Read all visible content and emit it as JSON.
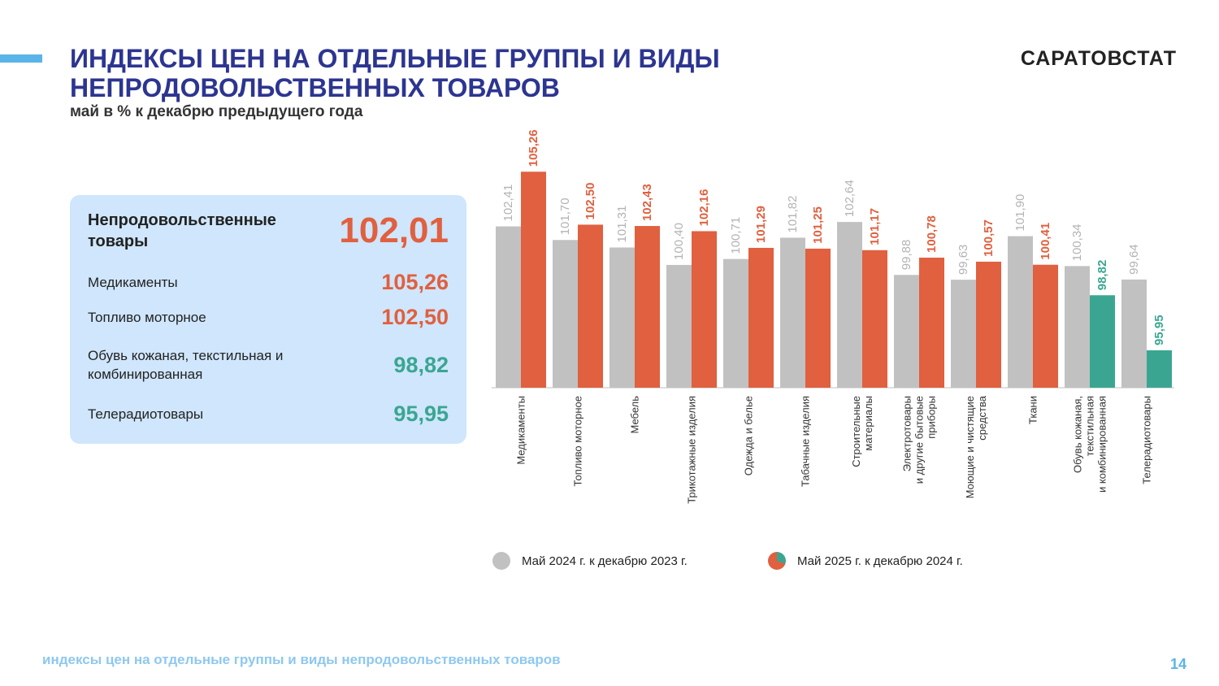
{
  "header": {
    "title_line1": "ИНДЕКСЫ ЦЕН НА ОТДЕЛЬНЫЕ ГРУППЫ И ВИДЫ",
    "title_line2": "НЕПРОДОВОЛЬСТВЕННЫХ ТОВАРОВ",
    "subtitle": "май в % к декабрю предыдущего года",
    "brand": "САРАТОВСТАТ"
  },
  "summary": {
    "items": [
      {
        "label": "Непродовольственные товары",
        "value": "102,01"
      },
      {
        "label": "Медикаменты",
        "value": "105,26"
      },
      {
        "label": "Топливо моторное",
        "value": "102,50"
      },
      {
        "label": "Обувь кожаная, текстильная и комбинированная",
        "value": "98,82"
      },
      {
        "label": "Телерадиотовары",
        "value": "95,95"
      }
    ]
  },
  "colors": {
    "prev": "#c1c1c1",
    "cur_up": "#e0603f",
    "cur_down": "#3aa691",
    "title": "#2c3590",
    "panel": "#cfe6fc"
  },
  "chart_data": {
    "type": "bar",
    "categories": [
      [
        "Медикаменты"
      ],
      [
        "Топливо моторное"
      ],
      [
        "Мебель"
      ],
      [
        "Трикотажные изделия"
      ],
      [
        "Одежда и белье"
      ],
      [
        "Табачные изделия"
      ],
      [
        "Строительные",
        "материалы"
      ],
      [
        "Электротовары",
        "и другие бытовые",
        "приборы"
      ],
      [
        "Моющие и чистящие",
        "средства"
      ],
      [
        "Ткани"
      ],
      [
        "Обувь кожаная,",
        "текстильная",
        "и комбинированная"
      ],
      [
        "Телерадиотовары"
      ]
    ],
    "series": [
      {
        "name": "Май  2024 г. к  декабрю 2023 г.",
        "values": [
          102.41,
          101.7,
          101.31,
          100.4,
          100.71,
          101.82,
          102.64,
          99.88,
          99.63,
          101.9,
          100.34,
          99.64
        ],
        "labels": [
          "102,41",
          "101,70",
          "101,31",
          "100,40",
          "100,71",
          "101,82",
          "102,64",
          "99,88",
          "99,63",
          "101,90",
          "100,34",
          "99,64"
        ]
      },
      {
        "name": "Май  2025 г. к  декабрю 2024 г.",
        "values": [
          105.26,
          102.5,
          102.43,
          102.16,
          101.29,
          101.25,
          101.17,
          100.78,
          100.57,
          100.41,
          98.82,
          95.95
        ],
        "labels": [
          "105,26",
          "102,50",
          "102,43",
          "102,16",
          "101,29",
          "101,25",
          "101,17",
          "100,78",
          "100,57",
          "100,41",
          "98,82",
          "95,95"
        ]
      }
    ]
  },
  "footer": {
    "text": "индексы цен на отдельные группы и виды непродовольственных товаров",
    "page": "14"
  }
}
